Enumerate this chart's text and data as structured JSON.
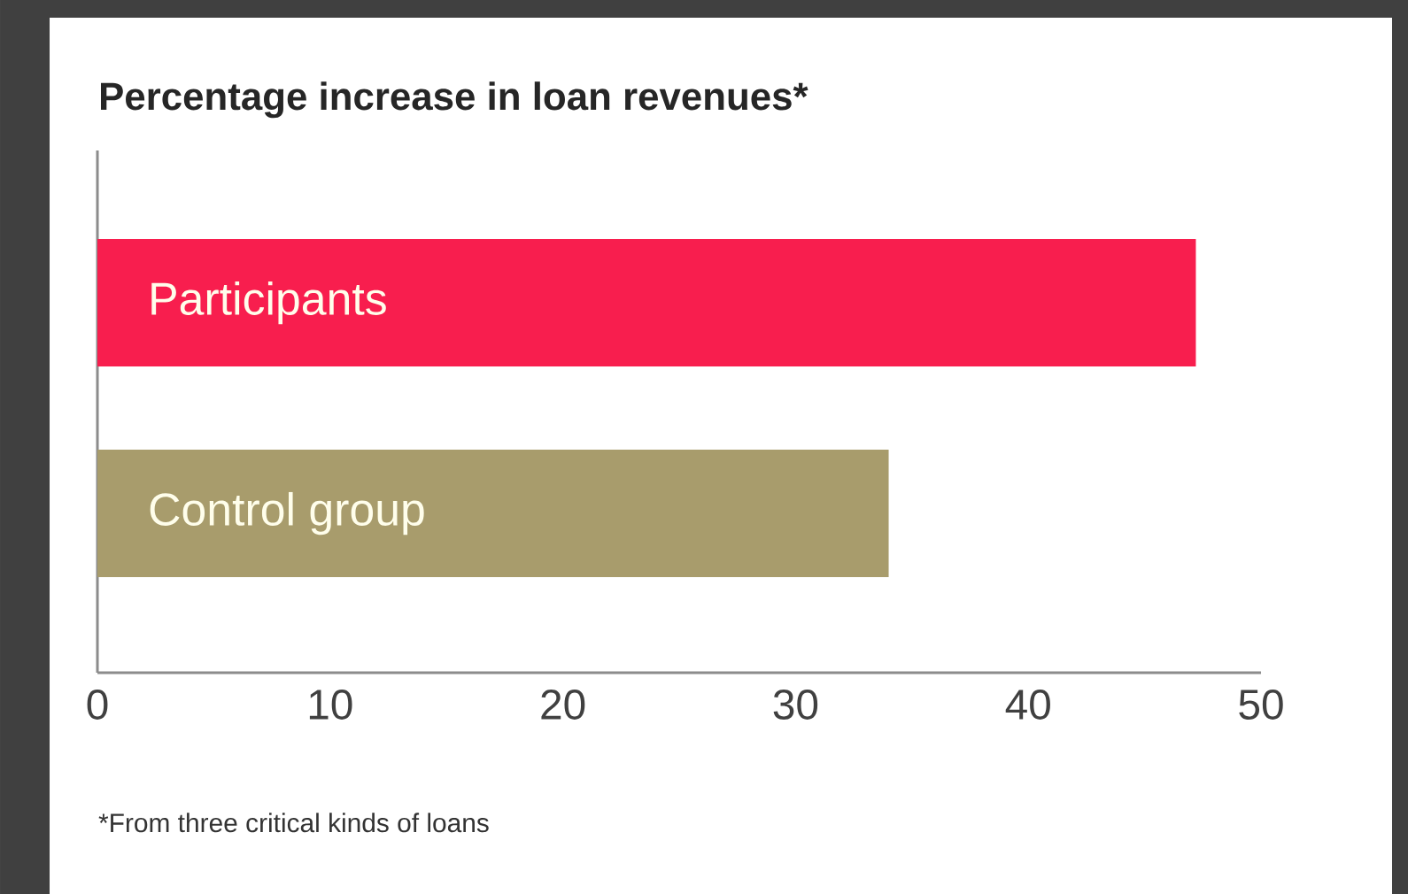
{
  "chart_data": {
    "type": "bar",
    "orientation": "horizontal",
    "title": "Percentage increase in loan revenues*",
    "categories": [
      "Participants",
      "Control group"
    ],
    "values": [
      47.2,
      34.0
    ],
    "colors": [
      "#f81e4e",
      "#a89c6c"
    ],
    "xlim": [
      0,
      50
    ],
    "xticks": [
      0,
      10,
      20,
      30,
      40,
      50
    ],
    "annotations": [
      "*From three critical kinds of loans"
    ]
  }
}
